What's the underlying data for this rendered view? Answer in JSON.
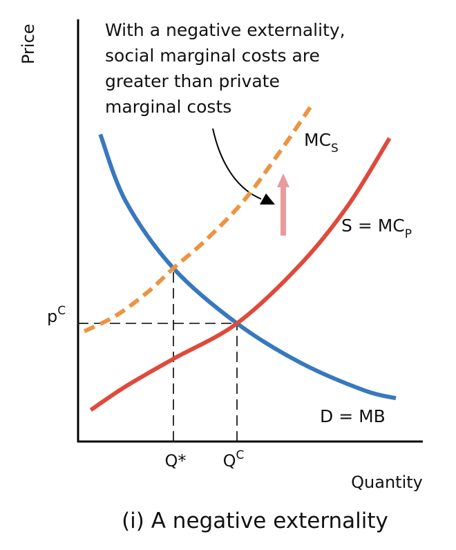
{
  "chart_data": {
    "type": "line",
    "title": "",
    "caption": "(i) A negative externality",
    "xlabel": "Quantity",
    "ylabel": "Price",
    "x_ticks": [
      {
        "x": 0.3,
        "label": "Q*"
      },
      {
        "x": 0.5,
        "base": "Q",
        "sup": "C"
      }
    ],
    "y_ticks": [
      {
        "y": 0.3,
        "base": "p",
        "sup": "C"
      }
    ],
    "series": [
      {
        "key": "mb",
        "name": "D = MB",
        "style": "solid",
        "color": "#3878be",
        "x": [
          0.07,
          0.15,
          0.3,
          0.5,
          0.7,
          0.9,
          1.0
        ],
        "y": [
          0.78,
          0.61,
          0.44,
          0.3,
          0.2,
          0.13,
          0.11
        ]
      },
      {
        "key": "mcp",
        "name": "S = MC",
        "name_sub": "P",
        "style": "solid",
        "color": "#de4a3b",
        "x": [
          0.04,
          0.15,
          0.3,
          0.5,
          0.7,
          0.85,
          0.98
        ],
        "y": [
          0.08,
          0.14,
          0.21,
          0.3,
          0.45,
          0.6,
          0.77
        ]
      },
      {
        "key": "mcs",
        "name": "MC",
        "name_sub": "S",
        "style": "dashed",
        "color": "#ec9442",
        "x": [
          0.02,
          0.12,
          0.22,
          0.3,
          0.4,
          0.52,
          0.63,
          0.74
        ],
        "y": [
          0.28,
          0.32,
          0.38,
          0.44,
          0.51,
          0.61,
          0.73,
          0.86
        ]
      }
    ],
    "guides": [
      {
        "from": [
          0,
          0.3
        ],
        "to": [
          0.5,
          0.3
        ]
      },
      {
        "from": [
          0.5,
          0
        ],
        "to": [
          0.5,
          0.3
        ]
      },
      {
        "from": [
          0.3,
          0
        ],
        "to": [
          0.3,
          0.44
        ]
      }
    ],
    "annotation": {
      "lines": [
        "With a negative externality,",
        "social marginal costs are",
        "greater than private",
        "marginal costs"
      ]
    },
    "shift_arrow": {
      "color": "#e99a9a"
    },
    "grid": false
  }
}
